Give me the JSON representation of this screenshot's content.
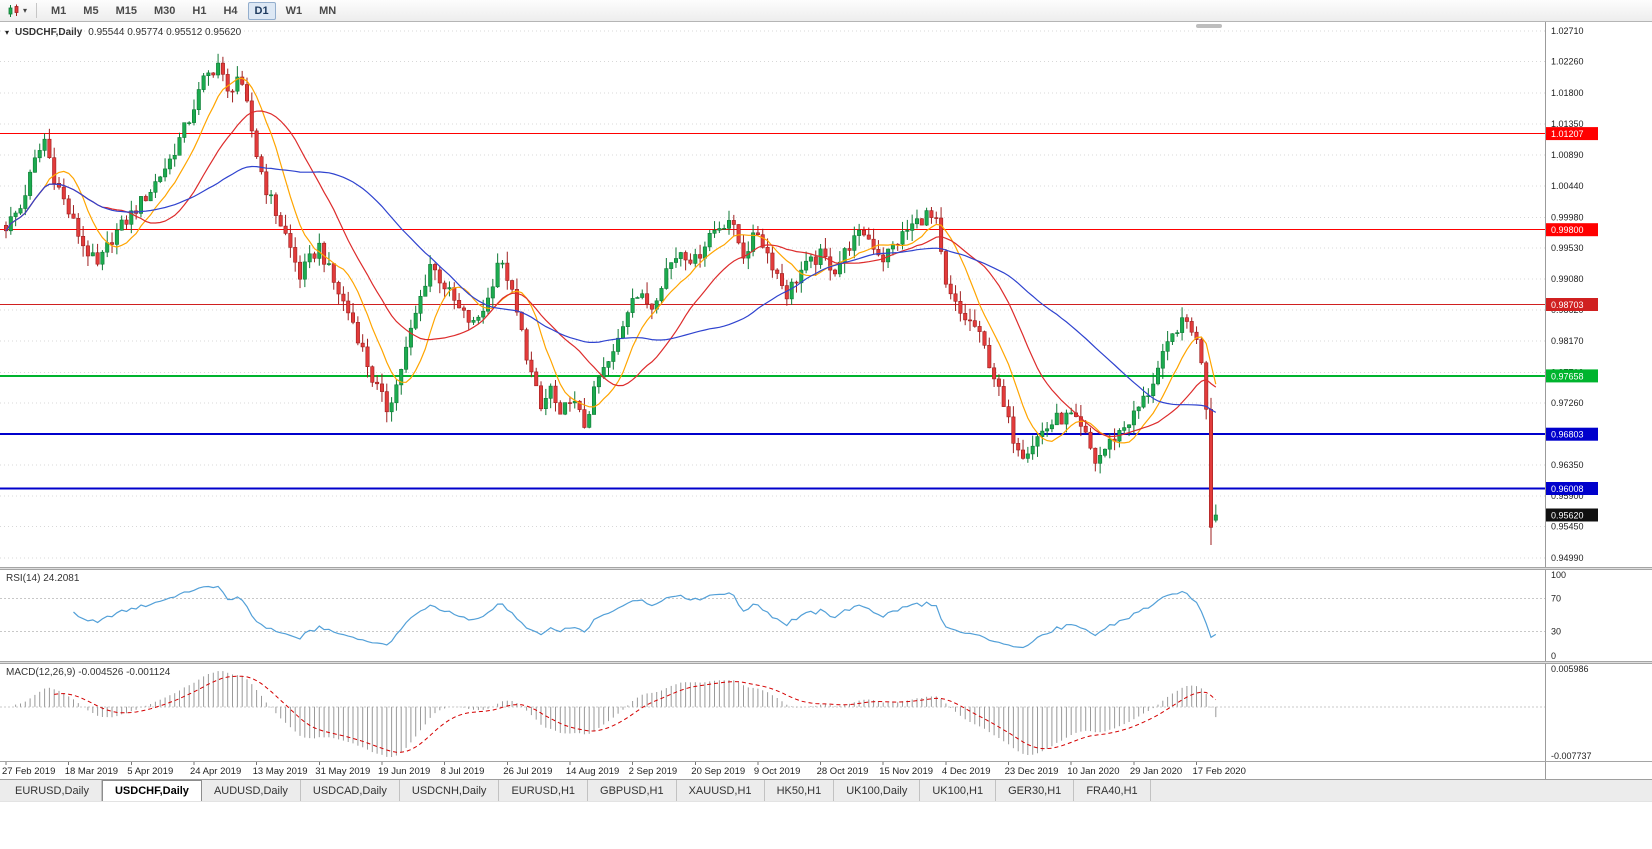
{
  "icons": {
    "chart_type_caret": "▾",
    "one_click_caret": "▾"
  },
  "toolbar": {
    "timeframes": [
      "M1",
      "M5",
      "M15",
      "M30",
      "H1",
      "H4",
      "D1",
      "W1",
      "MN"
    ],
    "active_timeframe": "D1"
  },
  "chart_header": {
    "symbol": "USDCHF,Daily",
    "ohlc": "0.95544 0.95774 0.95512 0.95620"
  },
  "chart_data": {
    "type": "candlestick",
    "title": "USDCHF,Daily",
    "last_candle": {
      "open": 0.95544,
      "high": 0.95774,
      "low": 0.95512,
      "close": 0.9562
    },
    "num_candles": 252,
    "candles_per_label": 13,
    "x_labels": [
      "27 Feb 2019",
      "18 Mar 2019",
      "5 Apr 2019",
      "24 Apr 2019",
      "13 May 2019",
      "31 May 2019",
      "19 Jun 2019",
      "8 Jul 2019",
      "26 Jul 2019",
      "14 Aug 2019",
      "2 Sep 2019",
      "20 Sep 2019",
      "9 Oct 2019",
      "28 Oct 2019",
      "15 Nov 2019",
      "4 Dec 2019",
      "23 Dec 2019",
      "10 Jan 2020",
      "29 Jan 2020",
      "17 Feb 2020"
    ],
    "y_axis_ticks": [
      "1.02710",
      "1.02260",
      "1.01800",
      "1.01350",
      "1.00890",
      "1.00440",
      "0.99980",
      "0.99530",
      "0.99080",
      "0.98620",
      "0.98170",
      "0.97710",
      "0.97260",
      "0.96800",
      "0.96350",
      "0.95900",
      "0.95450",
      "0.94990"
    ],
    "y_range": [
      0.94858,
      1.02842
    ],
    "close_keyframes": [
      [
        0,
        0.9985
      ],
      [
        3,
        1.0012
      ],
      [
        6,
        1.008
      ],
      [
        8,
        1.0112
      ],
      [
        10,
        1.0058
      ],
      [
        13,
        1.0005
      ],
      [
        16,
        0.9958
      ],
      [
        19,
        0.9925
      ],
      [
        22,
        0.9968
      ],
      [
        26,
        1.0002
      ],
      [
        30,
        1.0038
      ],
      [
        34,
        1.0082
      ],
      [
        38,
        1.0142
      ],
      [
        41,
        1.0198
      ],
      [
        44,
        1.0224
      ],
      [
        46,
        1.0178
      ],
      [
        48,
        1.0205
      ],
      [
        50,
        1.016
      ],
      [
        52,
        1.009
      ],
      [
        54,
        1.004
      ],
      [
        56,
        1.0005
      ],
      [
        58,
        0.9972
      ],
      [
        61,
        0.9912
      ],
      [
        63,
        0.9935
      ],
      [
        65,
        0.9956
      ],
      [
        68,
        0.9902
      ],
      [
        72,
        0.9845
      ],
      [
        76,
        0.9762
      ],
      [
        79,
        0.9718
      ],
      [
        81,
        0.9752
      ],
      [
        84,
        0.983
      ],
      [
        88,
        0.993
      ],
      [
        91,
        0.9898
      ],
      [
        94,
        0.9862
      ],
      [
        97,
        0.984
      ],
      [
        100,
        0.9878
      ],
      [
        102,
        0.9934
      ],
      [
        104,
        0.9912
      ],
      [
        107,
        0.9828
      ],
      [
        109,
        0.9768
      ],
      [
        111,
        0.9716
      ],
      [
        113,
        0.9748
      ],
      [
        115,
        0.97
      ],
      [
        117,
        0.9736
      ],
      [
        120,
        0.9694
      ],
      [
        123,
        0.9762
      ],
      [
        126,
        0.9796
      ],
      [
        130,
        0.9888
      ],
      [
        134,
        0.9868
      ],
      [
        137,
        0.9922
      ],
      [
        140,
        0.995
      ],
      [
        143,
        0.9934
      ],
      [
        146,
        0.9974
      ],
      [
        150,
        0.9996
      ],
      [
        153,
        0.9944
      ],
      [
        156,
        0.9976
      ],
      [
        159,
        0.993
      ],
      [
        162,
        0.9886
      ],
      [
        165,
        0.992
      ],
      [
        169,
        0.9942
      ],
      [
        172,
        0.9922
      ],
      [
        175,
        0.9958
      ],
      [
        178,
        0.9976
      ],
      [
        182,
        0.9938
      ],
      [
        185,
        0.9964
      ],
      [
        188,
        0.9986
      ],
      [
        191,
        1.0002
      ],
      [
        193,
        0.9988
      ],
      [
        195,
        0.9894
      ],
      [
        198,
        0.9856
      ],
      [
        201,
        0.9838
      ],
      [
        203,
        0.9806
      ],
      [
        205,
        0.9766
      ],
      [
        207,
        0.9718
      ],
      [
        209,
        0.9676
      ],
      [
        211,
        0.9654
      ],
      [
        213,
        0.9668
      ],
      [
        215,
        0.9684
      ],
      [
        218,
        0.9702
      ],
      [
        221,
        0.9706
      ],
      [
        224,
        0.9676
      ],
      [
        226,
        0.964
      ],
      [
        229,
        0.9668
      ],
      [
        232,
        0.9692
      ],
      [
        234,
        0.9708
      ],
      [
        237,
        0.9742
      ],
      [
        240,
        0.9792
      ],
      [
        243,
        0.9838
      ],
      [
        245,
        0.9844
      ],
      [
        247,
        0.9818
      ],
      [
        248,
        0.9786
      ],
      [
        249,
        0.9718
      ],
      [
        250,
        0.9545
      ],
      [
        251,
        0.9562
      ]
    ],
    "candle_overrides": {
      "250": {
        "low": 0.9518
      },
      "251": {
        "open": 0.95544,
        "high": 0.95774,
        "low": 0.95512,
        "close": 0.9562
      }
    },
    "colors": {
      "up": "#1cab4f",
      "up_dark": "#0e7a35",
      "down": "#e23b3b",
      "down_dark": "#9e1f1f",
      "grid": "#d8d8d8",
      "rsi_line": "#53a0d8",
      "macd_hist": "#9a9a9a",
      "macd_signal": "#d40000"
    },
    "horizontal_lines": [
      {
        "price": 1.01207,
        "label": "1.01207",
        "color": "#ff0000",
        "width": 1
      },
      {
        "price": 0.998,
        "label": "0.99800",
        "color": "#ff0000",
        "width": 1
      },
      {
        "price": 0.98703,
        "label": "0.98703",
        "color": "#d02020",
        "width": 1
      },
      {
        "price": 0.97658,
        "label": "0.97658",
        "color": "#00b42e",
        "width": 2
      },
      {
        "price": 0.96803,
        "label": "0.96803",
        "color": "#0000cc",
        "width": 2
      },
      {
        "price": 0.96008,
        "label": "0.96008",
        "color": "#0000cc",
        "width": 2
      }
    ],
    "current_price": {
      "value": 0.9562,
      "label": "0.95620",
      "bg": "#101010"
    },
    "moving_averages": [
      {
        "period": 9,
        "color": "#ffa500"
      },
      {
        "period": 21,
        "color": "#dd2c2c"
      },
      {
        "period": 45,
        "color": "#2f43cf"
      }
    ],
    "rsi": {
      "label": "RSI(14) 24.2081",
      "period": 14,
      "value": 24.2081,
      "upper_level": 70,
      "lower_level": 30,
      "axis_ticks": [
        "100",
        "70",
        "30",
        "0"
      ]
    },
    "macd": {
      "label": "MACD(12,26,9) -0.004526 -0.001124",
      "fast": 12,
      "slow": 26,
      "signal": 9,
      "macd_value": -0.004526,
      "signal_value": -0.001124,
      "axis_max": 0.005986,
      "axis_min": -0.007737,
      "axis_max_label": "0.005986",
      "axis_min_label": "-0.007737"
    }
  },
  "tabs": {
    "items": [
      "EURUSD,Daily",
      "USDCHF,Daily",
      "AUDUSD,Daily",
      "USDCAD,Daily",
      "USDCNH,Daily",
      "EURUSD,H1",
      "GBPUSD,H1",
      "XAUUSD,H1",
      "HK50,H1",
      "UK100,Daily",
      "UK100,H1",
      "GER30,H1",
      "FRA40,H1"
    ],
    "active": "USDCHF,Daily"
  }
}
